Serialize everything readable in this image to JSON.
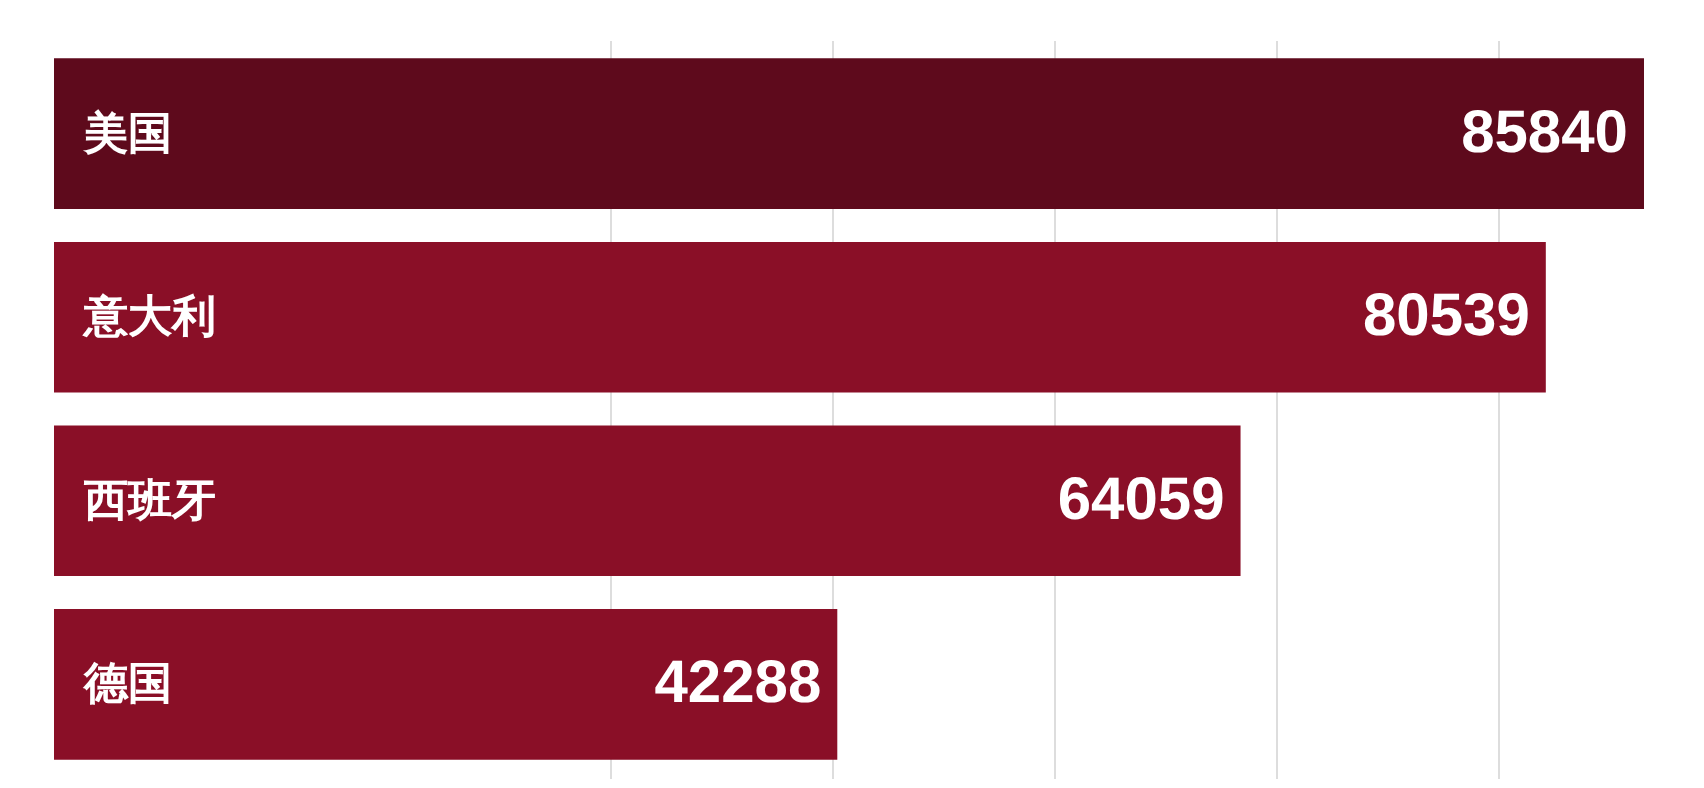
{
  "chart_data": {
    "type": "bar",
    "orientation": "horizontal",
    "categories": [
      "美国",
      "意大利",
      "西班牙",
      "德国"
    ],
    "values": [
      85840,
      80539,
      64059,
      42288
    ],
    "colors": [
      "#5e0a1c",
      "#8a0f27",
      "#8a0f27",
      "#8a0f27"
    ],
    "data_labels": true,
    "relative": false,
    "grid": "x",
    "tick_labels": false,
    "xticks": [
      {
        "value": 30000,
        "label": null
      },
      {
        "value": 42000,
        "label": null
      },
      {
        "value": 54000,
        "label": null
      },
      {
        "value": 66000,
        "label": null
      },
      {
        "value": 78000,
        "label": null
      }
    ]
  }
}
